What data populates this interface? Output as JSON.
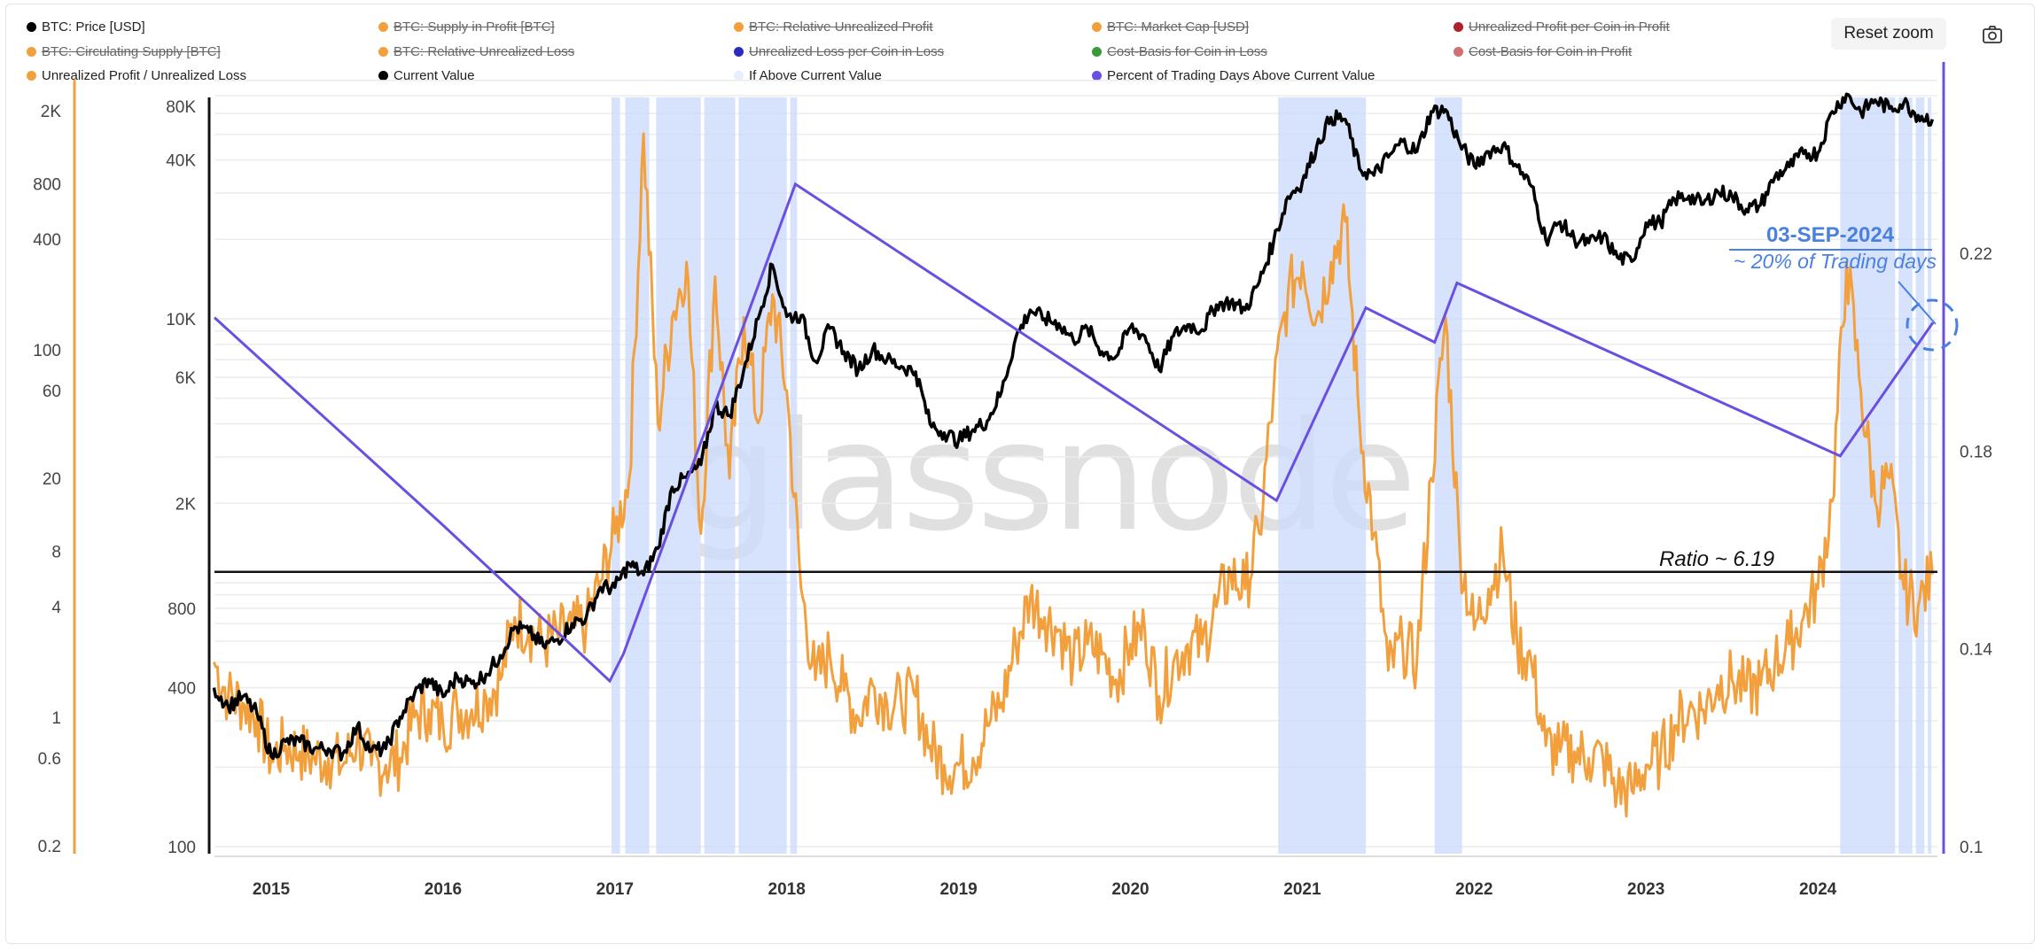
{
  "legend": [
    {
      "label": "BTC: Price [USD]",
      "color": "#000000",
      "hidden": false
    },
    {
      "label": "BTC: Supply in Profit [BTC]",
      "color": "#f2a03d",
      "hidden": true
    },
    {
      "label": "BTC: Relative Unrealized Profit",
      "color": "#f2a03d",
      "hidden": true
    },
    {
      "label": "BTC: Market Cap [USD]",
      "color": "#f2a03d",
      "hidden": true
    },
    {
      "label": "Unrealized Profit per Coin in Profit",
      "color": "#b0202a",
      "hidden": true
    },
    {
      "label": "BTC: Circulating Supply [BTC]",
      "color": "#f2a03d",
      "hidden": true
    },
    {
      "label": "BTC: Relative Unrealized Loss",
      "color": "#f2a03d",
      "hidden": true
    },
    {
      "label": "Unrealized Loss per Coin in Loss",
      "color": "#2b2bbf",
      "hidden": true
    },
    {
      "label": "Cost-Basis for Coin in Loss",
      "color": "#3a9a3a",
      "hidden": true
    },
    {
      "label": "Cost-Basis for Coin in Profit",
      "color": "#d07070",
      "hidden": true
    },
    {
      "label": "Unrealized Profit / Unrealized Loss",
      "color": "#f2a03d",
      "hidden": false
    },
    {
      "label": "Current Value",
      "color": "#000000",
      "hidden": false
    },
    {
      "label": "If Above Current Value",
      "color": "#e8effc",
      "hidden": false
    },
    {
      "label": "Percent of Trading Days Above Current Value",
      "color": "#6a4fe0",
      "hidden": false
    }
  ],
  "toolbar": {
    "reset_zoom": "Reset zoom",
    "camera_icon": "camera-icon"
  },
  "watermark": "glassnode",
  "annotations": {
    "date": "03-SEP-2024",
    "subtitle": "~ 20% of Trading days",
    "ratio": "Ratio ~ 6.19"
  },
  "chart_data": {
    "type": "line",
    "x_start": "2014-09",
    "x_step": "month",
    "x_ticks": [
      "2015",
      "2016",
      "2017",
      "2018",
      "2019",
      "2020",
      "2021",
      "2022",
      "2023",
      "2024"
    ],
    "axes": {
      "left": {
        "label": "Unrealized Profit / Unrealized Loss",
        "scale": "log",
        "ticks": [
          "2K",
          "800",
          "400",
          "100",
          "60",
          "20",
          "8",
          "4",
          "1",
          "0.6",
          "0.2"
        ],
        "tick_values": [
          2000,
          800,
          400,
          100,
          60,
          20,
          8,
          4,
          1,
          0.6,
          0.2
        ],
        "range": [
          0.2,
          2000
        ]
      },
      "middle": {
        "label": "BTC: Price [USD]",
        "scale": "log",
        "ticks": [
          "80K",
          "40K",
          "10K",
          "6K",
          "2K",
          "800",
          "400",
          "100"
        ],
        "tick_values": [
          80000,
          40000,
          10000,
          6000,
          2000,
          800,
          400,
          100
        ],
        "range": [
          100,
          80000
        ]
      },
      "right": {
        "label": "Percent of Trading Days Above Current Value",
        "scale": "linear",
        "ticks": [
          "0.22",
          "0.18",
          "0.14",
          "0.1"
        ],
        "tick_values": [
          0.22,
          0.18,
          0.14,
          0.1
        ],
        "range": [
          0.1,
          0.24
        ]
      }
    },
    "series": [
      {
        "name": "BTC: Price [USD]",
        "color": "#000000",
        "axis": "middle",
        "values": [
          400,
          340,
          370,
          320,
          220,
          250,
          250,
          235,
          235,
          225,
          285,
          230,
          235,
          310,
          380,
          430,
          370,
          440,
          415,
          450,
          530,
          680,
          650,
          575,
          610,
          700,
          740,
          960,
          960,
          1180,
          1070,
          1350,
          2300,
          2500,
          2800,
          4700,
          4300,
          6400,
          10000,
          16000,
          10200,
          10300,
          6900,
          9200,
          7500,
          6400,
          7700,
          7000,
          6600,
          6300,
          4000,
          3700,
          3450,
          3800,
          4100,
          5300,
          8500,
          10800,
          10000,
          9600,
          8300,
          9200,
          7500,
          7200,
          9300,
          8600,
          6400,
          8600,
          9500,
          9100,
          11300,
          11600,
          10800,
          13800,
          19700,
          29000,
          33000,
          45000,
          58000,
          57000,
          37000,
          35000,
          41000,
          47000,
          43000,
          61000,
          62000,
          46000,
          38000,
          43000,
          45500,
          37700,
          31800,
          19900,
          23300,
          20000,
          19400,
          20500,
          17100,
          16500,
          23100,
          23100,
          28400,
          29200,
          27200,
          30400,
          29200,
          26000,
          27000,
          34500,
          37700,
          42300,
          42500,
          61000,
          71000,
          60600,
          67500,
          62700,
          66000,
          59000,
          57000
        ]
      },
      {
        "name": "Unrealized Profit / Unrealized Loss",
        "color": "#f2a03d",
        "axis": "left",
        "values": [
          2.0,
          1.3,
          1.2,
          1.0,
          0.6,
          0.7,
          0.65,
          0.6,
          0.6,
          0.55,
          0.75,
          0.55,
          0.55,
          0.6,
          1.0,
          1.1,
          0.9,
          1.1,
          1.1,
          1.3,
          1.6,
          3.5,
          3.0,
          2.5,
          2.8,
          3.0,
          3.2,
          5.5,
          10,
          20,
          1500,
          40,
          150,
          300,
          10,
          250,
          20,
          150,
          40,
          200,
          60,
          5,
          1.6,
          2.2,
          1.4,
          1.0,
          1.5,
          1.2,
          1.2,
          1.3,
          0.7,
          0.55,
          0.55,
          0.6,
          0.9,
          1.2,
          2.5,
          4.5,
          3.5,
          3.0,
          2.0,
          2.5,
          2.2,
          1.6,
          2.5,
          3.0,
          1.3,
          2.0,
          2.5,
          2.5,
          4.0,
          6.0,
          5.0,
          10,
          60,
          200,
          300,
          150,
          300,
          500,
          40,
          10,
          1.8,
          2.5,
          2.0,
          20,
          150,
          8,
          3,
          5,
          8,
          2.5,
          2.0,
          0.7,
          0.65,
          0.65,
          0.6,
          0.6,
          0.4,
          0.4,
          0.55,
          0.6,
          0.9,
          1.1,
          1.1,
          1.5,
          1.6,
          1.4,
          1.5,
          2.0,
          2.5,
          3.5,
          5,
          15,
          300,
          60,
          15,
          20,
          5,
          4,
          6
        ]
      },
      {
        "name": "Current Value",
        "color": "#000000",
        "axis": "left",
        "constant": 6.19
      },
      {
        "name": "Percent of Trading Days Above Current Value",
        "color": "#6a4fe0",
        "axis": "right",
        "points": [
          [
            2014.67,
            0.207
          ],
          [
            2016.0,
            0.165
          ],
          [
            2016.97,
            0.1335
          ],
          [
            2017.05,
            0.139
          ],
          [
            2018.05,
            0.234
          ],
          [
            2020.85,
            0.17
          ],
          [
            2021.37,
            0.209
          ],
          [
            2021.77,
            0.202
          ],
          [
            2021.9,
            0.214
          ],
          [
            2024.13,
            0.179
          ],
          [
            2024.67,
            0.206
          ]
        ]
      }
    ],
    "above_current_value_periods": [
      [
        2016.98,
        2017.03
      ],
      [
        2017.06,
        2017.2
      ],
      [
        2017.24,
        2017.5
      ],
      [
        2017.52,
        2017.7
      ],
      [
        2017.72,
        2018.0
      ],
      [
        2018.02,
        2018.06
      ],
      [
        2020.86,
        2021.37
      ],
      [
        2021.77,
        2021.93
      ],
      [
        2024.13,
        2024.45
      ],
      [
        2024.47,
        2024.55
      ],
      [
        2024.57,
        2024.62
      ],
      [
        2024.64,
        2024.66
      ]
    ]
  }
}
